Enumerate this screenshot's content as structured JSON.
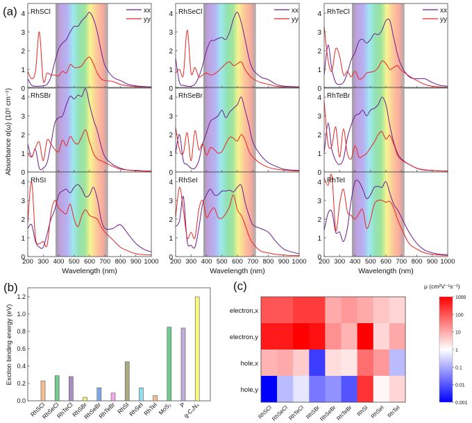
{
  "chart_data": [
    {
      "type": "line",
      "label": "(a)",
      "xlabel": "Wavelength (nm)",
      "ylabel": "Absorbance α(ω) (10⁵ cm⁻¹)",
      "xlim": [
        200,
        1000
      ],
      "ylim": [
        0,
        4.5
      ],
      "xticks": [
        "200",
        "300",
        "400",
        "500",
        "600",
        "700",
        "800",
        "900",
        "1000"
      ],
      "yticks": [
        "0",
        "1",
        "2",
        "3",
        "4"
      ],
      "legend": [
        "xx",
        "yy"
      ],
      "legend_position": "top-right",
      "series_colors": {
        "xx": "#6a1a8c",
        "yy": "#e8231f"
      },
      "visible_band_nm": [
        380,
        720
      ],
      "x": [
        200,
        225,
        250,
        275,
        300,
        325,
        350,
        375,
        400,
        425,
        450,
        475,
        500,
        525,
        550,
        575,
        600,
        625,
        650,
        675,
        700,
        750,
        800,
        850,
        900,
        950,
        1000
      ],
      "panels": [
        {
          "name": "RhSCl",
          "series": [
            {
              "name": "xx",
              "values": [
                0.5,
                0.15,
                0.1,
                0.1,
                0.12,
                0.2,
                0.6,
                1.4,
                2.1,
                2.4,
                2.6,
                3.0,
                3.3,
                3.3,
                3.6,
                3.8,
                4.05,
                3.7,
                3.0,
                2.0,
                1.2,
                0.6,
                0.4,
                0.2,
                0.12,
                0.08,
                0.06
              ]
            },
            {
              "name": "yy",
              "values": [
                0.9,
                0.5,
                0.9,
                3.0,
                0.4,
                0.8,
                0.7,
                0.7,
                0.65,
                0.9,
                0.8,
                1.25,
                1.1,
                1.1,
                1.2,
                1.5,
                1.65,
                1.3,
                0.8,
                0.5,
                0.4,
                0.35,
                0.2,
                0.12,
                0.08,
                0.05,
                0.04
              ]
            }
          ]
        },
        {
          "name": "RhSeCl",
          "series": [
            {
              "name": "xx",
              "values": [
                1.6,
                0.3,
                0.15,
                0.1,
                0.1,
                0.2,
                0.6,
                1.2,
                2.0,
                2.5,
                2.55,
                2.65,
                2.7,
                2.6,
                3.0,
                3.7,
                4.05,
                3.5,
                2.6,
                1.6,
                1.0,
                0.6,
                0.45,
                0.2,
                0.1,
                0.08,
                0.06
              ]
            },
            {
              "name": "yy",
              "values": [
                0.8,
                1.0,
                0.7,
                3.1,
                0.8,
                1.1,
                0.6,
                0.7,
                0.8,
                0.7,
                0.75,
                0.9,
                1.1,
                1.3,
                1.4,
                1.2,
                1.3,
                1.4,
                1.0,
                0.7,
                0.5,
                0.3,
                0.2,
                0.1,
                0.06,
                0.05,
                0.04
              ]
            }
          ]
        },
        {
          "name": "RhTeCl",
          "series": [
            {
              "name": "xx",
              "values": [
                0.7,
                2.3,
                1.0,
                0.3,
                0.2,
                0.3,
                0.8,
                1.5,
                1.9,
                2.5,
                2.6,
                2.4,
                2.6,
                2.9,
                2.85,
                3.1,
                3.6,
                3.6,
                2.7,
                1.8,
                1.2,
                0.6,
                0.5,
                0.5,
                0.3,
                0.15,
                0.1
              ]
            },
            {
              "name": "yy",
              "values": [
                3.3,
                1.5,
                0.9,
                2.1,
                1.7,
                0.7,
                0.9,
                0.6,
                0.9,
                0.5,
                0.55,
                0.8,
                0.85,
                0.9,
                1.1,
                1.45,
                1.3,
                1.0,
                1.1,
                1.2,
                0.95,
                0.65,
                0.4,
                0.2,
                0.1,
                0.06,
                0.05
              ]
            }
          ]
        },
        {
          "name": "RhSBr",
          "series": [
            {
              "name": "xx",
              "values": [
                1.5,
                0.8,
                1.2,
                0.2,
                0.2,
                0.5,
                1.5,
                2.6,
                2.9,
                3.0,
                3.6,
                4.05,
                3.9,
                4.1,
                4.05,
                4.45,
                3.6,
                2.8,
                2.2,
                1.4,
                0.8,
                0.4,
                0.2,
                0.1,
                0.08,
                0.06,
                0.05
              ]
            },
            {
              "name": "yy",
              "values": [
                1.0,
                0.8,
                1.3,
                1.6,
                0.6,
                1.7,
                1.5,
                1.2,
                1.1,
                1.7,
                1.4,
                1.9,
                1.6,
                1.5,
                1.9,
                2.25,
                1.6,
                1.0,
                0.7,
                0.6,
                0.5,
                0.3,
                0.15,
                0.1,
                0.06,
                0.05,
                0.04
              ]
            }
          ]
        },
        {
          "name": "RhSeBr",
          "series": [
            {
              "name": "xx",
              "values": [
                1.0,
                2.0,
                0.6,
                0.4,
                0.2,
                0.2,
                0.6,
                1.5,
                2.1,
                2.7,
                2.85,
                3.0,
                3.3,
                2.9,
                3.2,
                3.4,
                3.6,
                4.0,
                3.3,
                2.5,
                1.6,
                0.9,
                0.5,
                0.3,
                0.15,
                0.1,
                0.08
              ]
            },
            {
              "name": "yy",
              "values": [
                2.4,
                1.2,
                1.0,
                2.1,
                0.6,
                2.2,
                1.2,
                1.5,
                0.9,
                1.3,
                1.2,
                1.0,
                1.1,
                1.5,
                1.85,
                1.8,
                1.65,
                2.0,
                1.7,
                1.1,
                0.8,
                0.45,
                0.25,
                0.15,
                0.1,
                0.07,
                0.05
              ]
            }
          ]
        },
        {
          "name": "RhTeBr",
          "series": [
            {
              "name": "xx",
              "values": [
                1.0,
                2.6,
                1.2,
                0.6,
                0.4,
                0.7,
                1.8,
                2.5,
                3.0,
                3.1,
                3.3,
                3.0,
                3.3,
                3.4,
                3.6,
                4.0,
                3.6,
                2.5,
                1.6,
                1.0,
                0.7,
                0.4,
                0.2,
                0.1,
                0.08,
                0.06,
                0.05
              ]
            },
            {
              "name": "yy",
              "values": [
                3.8,
                1.5,
                1.4,
                2.4,
                0.8,
                2.3,
                1.0,
                0.7,
                1.4,
                0.8,
                0.85,
                1.0,
                1.3,
                1.6,
                2.0,
                2.15,
                1.75,
                1.95,
                1.5,
                0.9,
                0.65,
                0.4,
                0.2,
                0.12,
                0.08,
                0.06,
                0.05
              ]
            }
          ]
        },
        {
          "name": "RhSI",
          "series": [
            {
              "name": "xx",
              "values": [
                1.5,
                1.7,
                0.8,
                0.5,
                0.5,
                1.2,
                2.0,
                2.5,
                3.3,
                3.5,
                3.6,
                3.4,
                3.7,
                3.85,
                3.6,
                3.2,
                3.3,
                3.7,
                3.1,
                2.0,
                1.5,
                1.5,
                1.7,
                1.2,
                0.7,
                0.4,
                0.25
              ]
            },
            {
              "name": "yy",
              "values": [
                1.8,
                4.0,
                1.0,
                0.7,
                0.8,
                0.6,
                2.3,
                3.0,
                2.6,
                2.4,
                2.3,
                2.8,
                2.0,
                1.6,
                2.2,
                2.5,
                2.2,
                2.1,
                2.0,
                1.6,
                1.3,
                0.9,
                0.5,
                0.3,
                0.15,
                0.1,
                0.08
              ]
            }
          ]
        },
        {
          "name": "RhSeI",
          "series": [
            {
              "name": "xx",
              "values": [
                1.6,
                1.9,
                3.2,
                0.8,
                0.6,
                0.5,
                1.5,
                2.8,
                3.3,
                3.6,
                3.3,
                3.3,
                3.5,
                3.5,
                3.55,
                3.45,
                3.7,
                3.8,
                2.9,
                2.2,
                1.7,
                1.5,
                1.3,
                0.8,
                0.4,
                0.25,
                0.15
              ]
            },
            {
              "name": "yy",
              "values": [
                2.1,
                3.7,
                2.5,
                1.0,
                1.3,
                1.0,
                2.5,
                3.0,
                2.1,
                2.4,
                2.6,
                2.1,
                2.05,
                2.3,
                2.7,
                3.3,
                2.5,
                2.2,
                1.7,
                1.1,
                0.7,
                0.3,
                0.2,
                0.12,
                0.08,
                0.06,
                0.05
              ]
            }
          ]
        },
        {
          "name": "RhTeI",
          "series": [
            {
              "name": "xx",
              "values": [
                1.4,
                2.3,
                2.4,
                1.3,
                1.3,
                0.8,
                1.5,
                3.0,
                4.0,
                4.0,
                3.6,
                3.1,
                3.3,
                3.7,
                3.75,
                3.7,
                4.0,
                3.4,
                2.8,
                2.5,
                2.1,
                1.3,
                0.7,
                0.35,
                0.2,
                0.12,
                0.1
              ]
            },
            {
              "name": "yy",
              "values": [
                4.2,
                3.8,
                4.3,
                1.4,
                2.8,
                3.6,
                2.4,
                2.2,
                2.0,
                2.3,
                2.5,
                1.5,
                2.0,
                2.8,
                3.0,
                3.0,
                2.9,
                2.95,
                2.6,
                2.0,
                1.5,
                0.7,
                0.4,
                0.2,
                0.12,
                0.08,
                0.06
              ]
            }
          ]
        }
      ]
    },
    {
      "type": "bar",
      "label": "(b)",
      "ylabel": "Exciton binding energy (eV)",
      "ylim": [
        0,
        1.25
      ],
      "yticks": [
        "0.0",
        "0.2",
        "0.4",
        "0.6",
        "0.8",
        "1.0",
        "1.2"
      ],
      "categories": [
        "RhSCl",
        "RhSeCl",
        "RhTeCl",
        "RhSBr",
        "RhSeBr",
        "RhTeBr",
        "RhSI",
        "RhSeI",
        "RhTeI",
        "MoS₂",
        "P",
        "g-C₃N₄"
      ],
      "values": [
        0.23,
        0.29,
        0.28,
        0.04,
        0.15,
        0.09,
        0.45,
        0.15,
        0.06,
        0.85,
        0.84,
        1.2
      ],
      "colors": [
        "#f8bd8e",
        "#72c98d",
        "#a98dc6",
        "#f5f27c",
        "#7eaae8",
        "#f3a9f1",
        "#aaab84",
        "#92dfe9",
        "#f8bd8e",
        "#72c98d",
        "#c4abd8",
        "#f8f780"
      ]
    },
    {
      "type": "heatmap",
      "label": "(c)",
      "rows": [
        "electron,x",
        "electron,y",
        "hole,x",
        "hole,y"
      ],
      "columns": [
        "RhSCl",
        "RhSeCl",
        "RhTeCl",
        "RhSBr",
        "RhSeBr",
        "RhTeBr",
        "RhSI",
        "RhSeI",
        "RhTeI"
      ],
      "value_scale": "log10 of μ (cm²V⁻¹s⁻¹)",
      "values": [
        [
          2.0,
          2.0,
          2.3,
          2.3,
          1.0,
          1.2,
          1.0,
          0.7,
          0.5
        ],
        [
          2.7,
          2.7,
          3.0,
          2.8,
          1.3,
          0.9,
          3.0,
          0.5,
          1.0
        ],
        [
          0.9,
          1.0,
          0.6,
          -2.3,
          0.4,
          0.3,
          1.7,
          1.2,
          -0.8
        ],
        [
          -3.0,
          -0.8,
          -0.3,
          -1.6,
          -1.3,
          -2.0,
          2.4,
          0.1,
          0.5
        ]
      ],
      "colorbar_title": "μ (cm²V⁻¹s⁻¹)",
      "colorbar_ticks": [
        "1000",
        "100",
        "10",
        "1",
        "0.1",
        "0.01",
        "0.001"
      ],
      "colorbar_range_log10": [
        -3,
        3
      ],
      "colormap": {
        "low": "#0000ff",
        "mid": "#ffffff",
        "high": "#ff0000"
      }
    }
  ]
}
